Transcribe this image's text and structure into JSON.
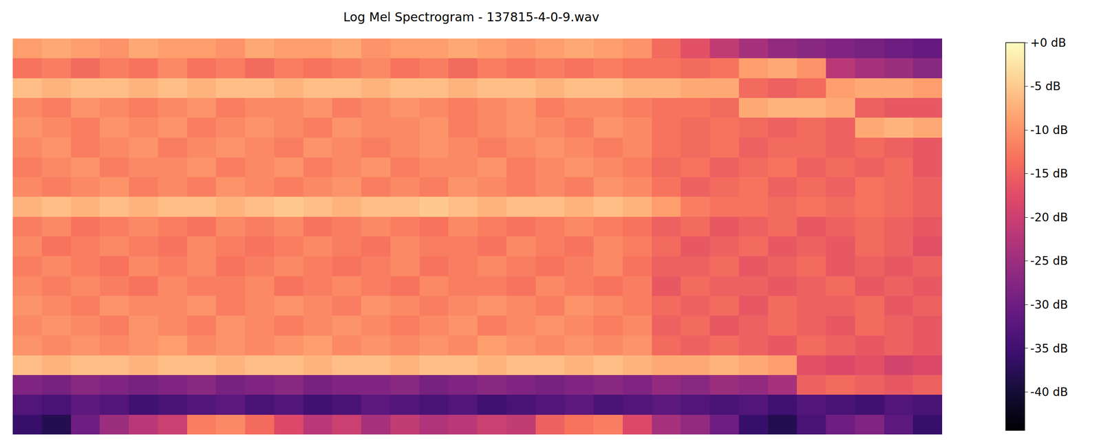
{
  "chart_data": {
    "type": "heatmap",
    "title": "Log Mel Spectrogram - 137815-4-0-9.wav",
    "tick_labels": false,
    "colorbar_range": [
      -44.4,
      0
    ],
    "colorbar_ticks": [
      {
        "value": 0,
        "label": "+0 dB"
      },
      {
        "value": -5,
        "label": "-5 dB"
      },
      {
        "value": -10,
        "label": "-10 dB"
      },
      {
        "value": -15,
        "label": "-15 dB"
      },
      {
        "value": -20,
        "label": "-20 dB"
      },
      {
        "value": -25,
        "label": "-25 dB"
      },
      {
        "value": -30,
        "label": "-30 dB"
      },
      {
        "value": -35,
        "label": "-35 dB"
      },
      {
        "value": -40,
        "label": "-40 dB"
      }
    ],
    "cells": [
      [
        -9,
        -8,
        -9,
        -10,
        -8,
        -9,
        -9,
        -10,
        -8,
        -9,
        -9,
        -8,
        -10,
        -9,
        -9,
        -8,
        -9,
        -10,
        -9,
        -8,
        -9,
        -10,
        -14,
        -17,
        -21,
        -24,
        -26,
        -27,
        -28,
        -29,
        -30,
        -31
      ],
      [
        -13,
        -12,
        -14,
        -12,
        -13,
        -11,
        -13,
        -12,
        -14,
        -12,
        -13,
        -12,
        -11,
        -13,
        -12,
        -14,
        -12,
        -13,
        -12,
        -13,
        -12,
        -13,
        -13,
        -14,
        -13,
        -9,
        -8,
        -10,
        -22,
        -24,
        -25,
        -27
      ],
      [
        -6,
        -7,
        -6,
        -6,
        -7,
        -6,
        -7,
        -6,
        -6,
        -7,
        -6,
        -6,
        -7,
        -6,
        -6,
        -7,
        -6,
        -6,
        -7,
        -6,
        -6,
        -7,
        -7,
        -8,
        -8,
        -14,
        -15,
        -14,
        -9,
        -8,
        -8,
        -9
      ],
      [
        -11,
        -12,
        -10,
        -11,
        -12,
        -11,
        -10,
        -12,
        -11,
        -11,
        -10,
        -12,
        -11,
        -10,
        -11,
        -12,
        -11,
        -10,
        -12,
        -11,
        -11,
        -12,
        -13,
        -13,
        -14,
        -8,
        -7,
        -7,
        -8,
        -15,
        -16,
        -16
      ],
      [
        -10,
        -11,
        -12,
        -10,
        -11,
        -10,
        -12,
        -11,
        -10,
        -11,
        -12,
        -10,
        -11,
        -11,
        -10,
        -12,
        -11,
        -10,
        -11,
        -12,
        -10,
        -11,
        -13,
        -14,
        -13,
        -14,
        -15,
        -14,
        -15,
        -8,
        -7,
        -8
      ],
      [
        -11,
        -10,
        -12,
        -11,
        -10,
        -12,
        -11,
        -10,
        -11,
        -12,
        -10,
        -11,
        -12,
        -11,
        -10,
        -11,
        -12,
        -11,
        -10,
        -11,
        -12,
        -11,
        -13,
        -14,
        -13,
        -15,
        -14,
        -14,
        -15,
        -14,
        -15,
        -16
      ],
      [
        -12,
        -11,
        -10,
        -12,
        -11,
        -11,
        -10,
        -12,
        -11,
        -10,
        -12,
        -11,
        -10,
        -12,
        -11,
        -11,
        -10,
        -12,
        -11,
        -10,
        -11,
        -12,
        -14,
        -13,
        -15,
        -14,
        -13,
        -15,
        -14,
        -15,
        -14,
        -16
      ],
      [
        -11,
        -12,
        -11,
        -10,
        -12,
        -11,
        -12,
        -10,
        -11,
        -12,
        -11,
        -10,
        -12,
        -11,
        -12,
        -10,
        -11,
        -12,
        -11,
        -12,
        -10,
        -11,
        -13,
        -15,
        -14,
        -13,
        -15,
        -14,
        -15,
        -13,
        -14,
        -15
      ],
      [
        -7,
        -6,
        -7,
        -6,
        -7,
        -6,
        -6,
        -7,
        -6,
        -5,
        -6,
        -7,
        -6,
        -6,
        -5,
        -6,
        -7,
        -6,
        -6,
        -7,
        -6,
        -7,
        -9,
        -12,
        -13,
        -13,
        -14,
        -13,
        -14,
        -13,
        -14,
        -15
      ],
      [
        -12,
        -11,
        -13,
        -12,
        -11,
        -12,
        -13,
        -11,
        -12,
        -11,
        -13,
        -12,
        -11,
        -12,
        -13,
        -11,
        -12,
        -13,
        -12,
        -11,
        -12,
        -13,
        -15,
        -14,
        -16,
        -15,
        -14,
        -16,
        -15,
        -14,
        -15,
        -16
      ],
      [
        -11,
        -13,
        -12,
        -11,
        -12,
        -13,
        -11,
        -12,
        -13,
        -12,
        -11,
        -12,
        -13,
        -11,
        -12,
        -12,
        -13,
        -11,
        -12,
        -13,
        -11,
        -12,
        -14,
        -16,
        -15,
        -14,
        -16,
        -15,
        -16,
        -14,
        -15,
        -17
      ],
      [
        -12,
        -11,
        -12,
        -13,
        -11,
        -12,
        -11,
        -13,
        -12,
        -11,
        -12,
        -13,
        -12,
        -11,
        -13,
        -12,
        -11,
        -12,
        -13,
        -12,
        -11,
        -13,
        -15,
        -15,
        -14,
        -16,
        -15,
        -14,
        -16,
        -15,
        -16,
        -15
      ],
      [
        -11,
        -12,
        -11,
        -12,
        -13,
        -11,
        -12,
        -12,
        -11,
        -13,
        -12,
        -11,
        -12,
        -13,
        -11,
        -12,
        -12,
        -13,
        -11,
        -12,
        -13,
        -12,
        -16,
        -14,
        -15,
        -15,
        -16,
        -15,
        -14,
        -16,
        -15,
        -16
      ],
      [
        -10,
        -11,
        -12,
        -10,
        -11,
        -11,
        -10,
        -12,
        -11,
        -10,
        -11,
        -12,
        -10,
        -11,
        -12,
        -11,
        -10,
        -11,
        -12,
        -10,
        -11,
        -12,
        -14,
        -15,
        -14,
        -16,
        -14,
        -15,
        -15,
        -14,
        -16,
        -15
      ],
      [
        -11,
        -10,
        -11,
        -12,
        -10,
        -11,
        -12,
        -10,
        -11,
        -12,
        -11,
        -10,
        -11,
        -12,
        -11,
        -10,
        -12,
        -11,
        -10,
        -11,
        -12,
        -11,
        -15,
        -14,
        -16,
        -15,
        -14,
        -15,
        -16,
        -14,
        -15,
        -16
      ],
      [
        -10,
        -11,
        -10,
        -11,
        -10,
        -9,
        -11,
        -10,
        -11,
        -10,
        -9,
        -11,
        -10,
        -11,
        -10,
        -11,
        -9,
        -10,
        -11,
        -10,
        -11,
        -10,
        -14,
        -15,
        -14,
        -15,
        -16,
        -14,
        -15,
        -16,
        -15,
        -16
      ],
      [
        -6,
        -7,
        -6,
        -6,
        -7,
        -6,
        -6,
        -7,
        -6,
        -6,
        -7,
        -6,
        -6,
        -7,
        -6,
        -6,
        -7,
        -6,
        -6,
        -7,
        -6,
        -7,
        -8,
        -8,
        -7,
        -8,
        -9,
        -17,
        -18,
        -17,
        -19,
        -18
      ],
      [
        -28,
        -29,
        -27,
        -28,
        -29,
        -28,
        -27,
        -29,
        -28,
        -27,
        -29,
        -28,
        -28,
        -27,
        -29,
        -28,
        -27,
        -28,
        -29,
        -28,
        -27,
        -28,
        -26,
        -27,
        -25,
        -26,
        -24,
        -15,
        -14,
        -15,
        -16,
        -15
      ],
      [
        -33,
        -34,
        -32,
        -33,
        -35,
        -34,
        -33,
        -32,
        -34,
        -33,
        -35,
        -34,
        -32,
        -33,
        -34,
        -33,
        -35,
        -34,
        -33,
        -32,
        -34,
        -33,
        -32,
        -33,
        -34,
        -33,
        -35,
        -33,
        -34,
        -35,
        -33,
        -34
      ],
      [
        -36,
        -38,
        -30,
        -25,
        -22,
        -20,
        -12,
        -11,
        -14,
        -18,
        -22,
        -20,
        -24,
        -21,
        -23,
        -22,
        -20,
        -21,
        -15,
        -13,
        -12,
        -18,
        -24,
        -26,
        -30,
        -36,
        -38,
        -34,
        -30,
        -28,
        -32,
        -36
      ]
    ]
  }
}
